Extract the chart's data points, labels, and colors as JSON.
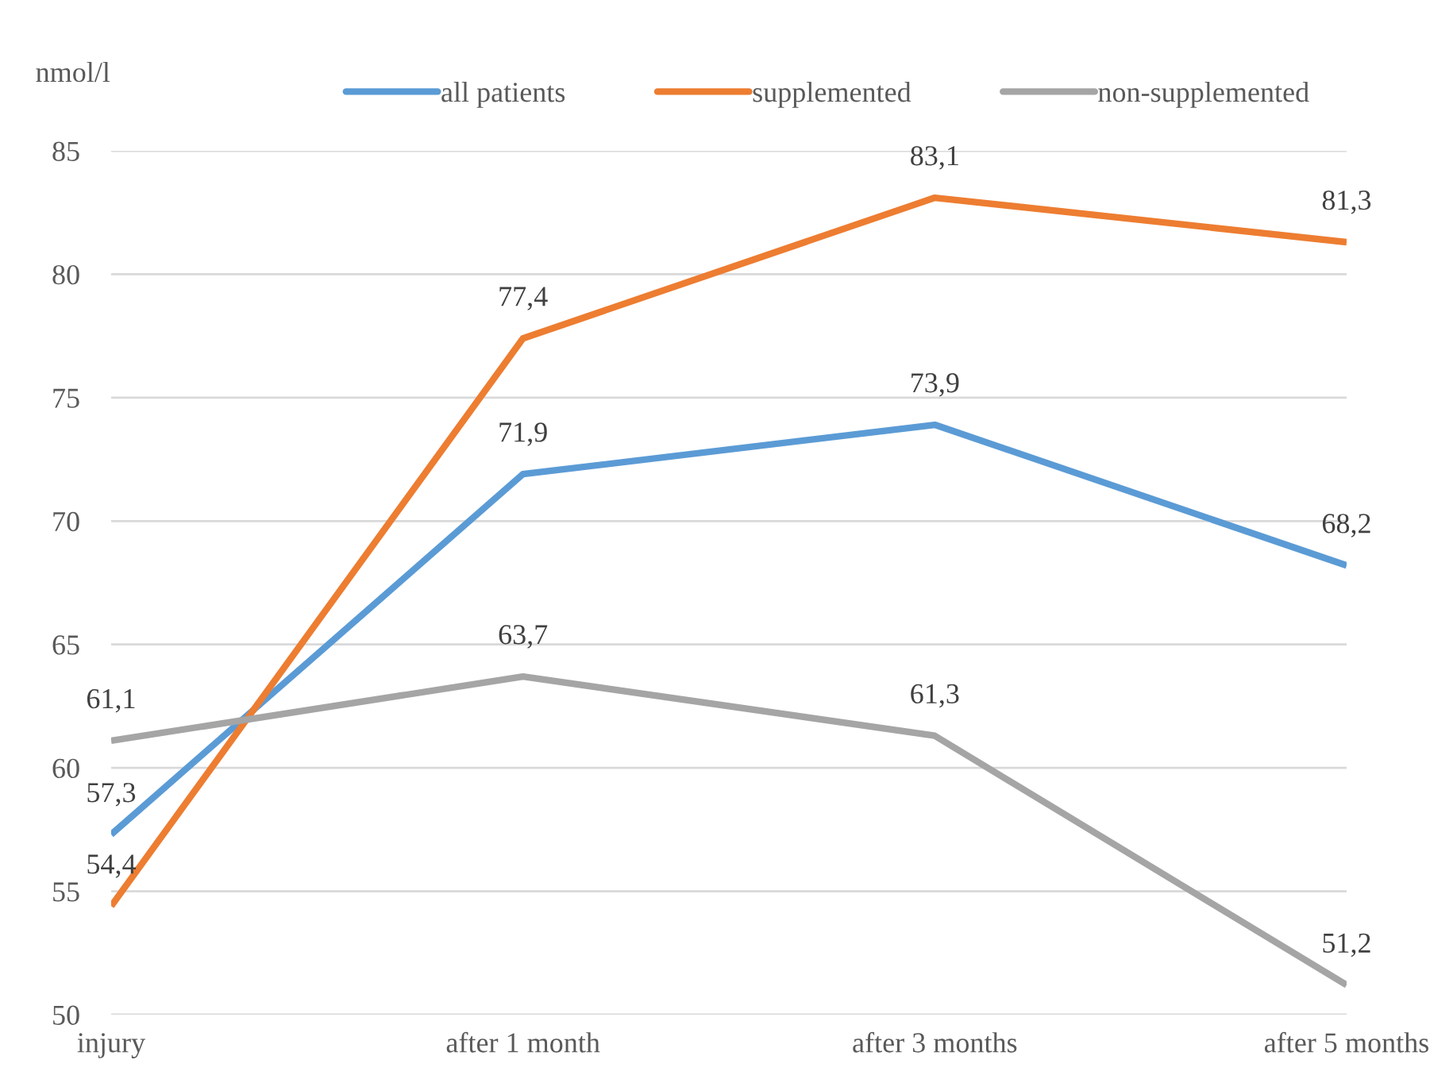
{
  "chart_data": {
    "type": "line",
    "ylabel": "nmol/l",
    "categories": [
      "injury",
      "after 1 month",
      "after 3 months",
      "after 5 months"
    ],
    "series": [
      {
        "name": "all patients",
        "color": "#5b9bd5",
        "values": [
          57.3,
          71.9,
          73.9,
          68.2
        ],
        "value_labels": [
          "57,3",
          "71,9",
          "73,9",
          "68,2"
        ]
      },
      {
        "name": "supplemented",
        "color": "#ed7d31",
        "values": [
          54.4,
          77.4,
          83.1,
          81.3
        ],
        "value_labels": [
          "54,4",
          "77,4",
          "83,1",
          "81,3"
        ]
      },
      {
        "name": "non-supplemented",
        "color": "#a5a5a5",
        "values": [
          61.1,
          63.7,
          61.3,
          51.2
        ],
        "value_labels": [
          "61,1",
          "63,7",
          "61,3",
          "51,2"
        ]
      }
    ],
    "ylim": [
      50,
      85
    ],
    "yticks": [
      50,
      55,
      60,
      65,
      70,
      75,
      80,
      85
    ],
    "grid": "y",
    "legend": "top",
    "marker": "none",
    "line_style": "solid"
  }
}
